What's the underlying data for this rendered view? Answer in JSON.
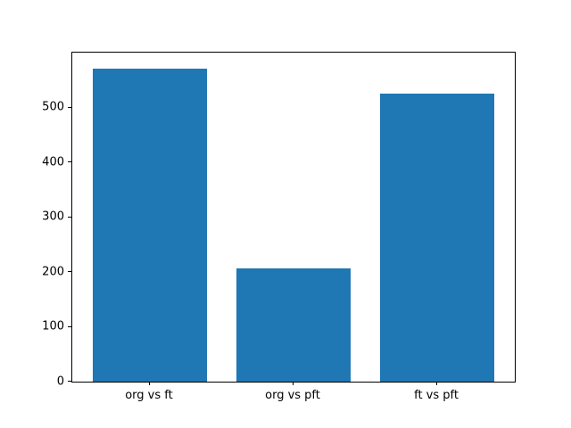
{
  "chart_data": {
    "type": "bar",
    "title": "",
    "xlabel": "",
    "ylabel": "",
    "categories": [
      "org vs ft",
      "org vs pft",
      "ft vs pft"
    ],
    "values": [
      570,
      207,
      526
    ],
    "ylim": [
      0,
      600
    ],
    "yticks": [
      0,
      100,
      200,
      300,
      400,
      500
    ],
    "bar_color": "#1f77b4",
    "grid": false,
    "legend_position": "none"
  }
}
